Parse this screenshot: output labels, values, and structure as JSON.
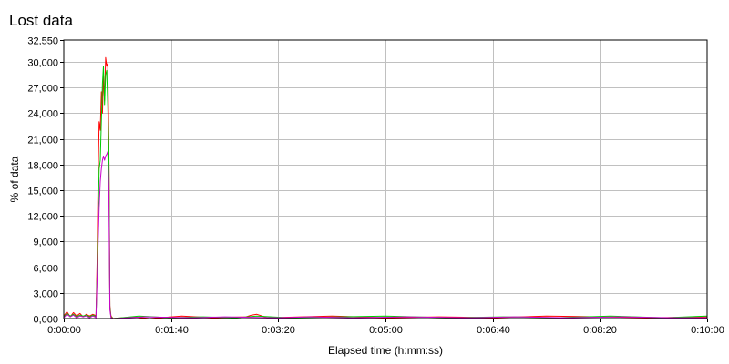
{
  "chart_data": {
    "type": "line",
    "title": "Lost data",
    "xlabel": "Elapsed time (h:mm:ss)",
    "ylabel": "% of data",
    "xlim": [
      0,
      600
    ],
    "ylim": [
      0,
      32550
    ],
    "x_ticks": [
      {
        "value": 0,
        "label": "0:00:00"
      },
      {
        "value": 100,
        "label": "0:01:40"
      },
      {
        "value": 200,
        "label": "0:03:20"
      },
      {
        "value": 300,
        "label": "0:05:00"
      },
      {
        "value": 400,
        "label": "0:06:40"
      },
      {
        "value": 500,
        "label": "0:08:20"
      },
      {
        "value": 600,
        "label": "0:10:00"
      }
    ],
    "y_ticks": [
      {
        "value": 0,
        "label": "0,000"
      },
      {
        "value": 3000,
        "label": "3,000"
      },
      {
        "value": 6000,
        "label": "6,000"
      },
      {
        "value": 9000,
        "label": "9,000"
      },
      {
        "value": 12000,
        "label": "12,000"
      },
      {
        "value": 15000,
        "label": "15,000"
      },
      {
        "value": 18000,
        "label": "18,000"
      },
      {
        "value": 21000,
        "label": "21,000"
      },
      {
        "value": 24000,
        "label": "24,000"
      },
      {
        "value": 27000,
        "label": "27,000"
      },
      {
        "value": 30000,
        "label": "30,000"
      },
      {
        "value": 32550,
        "label": "32,550"
      }
    ],
    "grid": true,
    "series": [
      {
        "color": "#ff0000",
        "points": [
          [
            0,
            300
          ],
          [
            3,
            800
          ],
          [
            6,
            200
          ],
          [
            9,
            700
          ],
          [
            12,
            300
          ],
          [
            15,
            600
          ],
          [
            18,
            200
          ],
          [
            21,
            500
          ],
          [
            24,
            300
          ],
          [
            27,
            500
          ],
          [
            29,
            400
          ],
          [
            30,
            200
          ],
          [
            31,
            6500
          ],
          [
            32,
            17000
          ],
          [
            33,
            23000
          ],
          [
            34,
            22000
          ],
          [
            35,
            26500
          ],
          [
            36,
            24000
          ],
          [
            37,
            28500
          ],
          [
            38,
            25500
          ],
          [
            39,
            30500
          ],
          [
            40,
            29500
          ],
          [
            41,
            29800
          ],
          [
            42,
            21000
          ],
          [
            43,
            1500
          ],
          [
            44,
            300
          ],
          [
            46,
            0
          ],
          [
            65,
            200
          ],
          [
            80,
            0
          ],
          [
            110,
            300
          ],
          [
            140,
            100
          ],
          [
            170,
            200
          ],
          [
            175,
            400
          ],
          [
            180,
            500
          ],
          [
            190,
            100
          ],
          [
            250,
            300
          ],
          [
            300,
            100
          ],
          [
            350,
            200
          ],
          [
            400,
            100
          ],
          [
            450,
            300
          ],
          [
            500,
            200
          ],
          [
            550,
            100
          ],
          [
            600,
            200
          ]
        ]
      },
      {
        "color": "#00cc00",
        "points": [
          [
            0,
            200
          ],
          [
            3,
            600
          ],
          [
            6,
            300
          ],
          [
            9,
            500
          ],
          [
            12,
            200
          ],
          [
            15,
            400
          ],
          [
            18,
            300
          ],
          [
            21,
            400
          ],
          [
            24,
            200
          ],
          [
            27,
            400
          ],
          [
            29,
            300
          ],
          [
            30,
            200
          ],
          [
            31,
            5000
          ],
          [
            32,
            12000
          ],
          [
            33,
            17500
          ],
          [
            34,
            18500
          ],
          [
            35,
            23000
          ],
          [
            36,
            27500
          ],
          [
            37,
            29500
          ],
          [
            38,
            25000
          ],
          [
            39,
            28500
          ],
          [
            40,
            29000
          ],
          [
            41,
            25000
          ],
          [
            42,
            20000
          ],
          [
            43,
            1200
          ],
          [
            44,
            200
          ],
          [
            46,
            0
          ],
          [
            70,
            300
          ],
          [
            100,
            100
          ],
          [
            130,
            200
          ],
          [
            160,
            100
          ],
          [
            180,
            300
          ],
          [
            210,
            100
          ],
          [
            260,
            200
          ],
          [
            300,
            300
          ],
          [
            360,
            100
          ],
          [
            410,
            200
          ],
          [
            460,
            100
          ],
          [
            510,
            300
          ],
          [
            560,
            100
          ],
          [
            600,
            300
          ]
        ]
      },
      {
        "color": "#cc00cc",
        "points": [
          [
            0,
            100
          ],
          [
            3,
            500
          ],
          [
            6,
            200
          ],
          [
            9,
            400
          ],
          [
            12,
            100
          ],
          [
            15,
            300
          ],
          [
            18,
            200
          ],
          [
            21,
            300
          ],
          [
            24,
            100
          ],
          [
            27,
            300
          ],
          [
            29,
            200
          ],
          [
            30,
            100
          ],
          [
            31,
            4500
          ],
          [
            32,
            9000
          ],
          [
            33,
            13000
          ],
          [
            34,
            16000
          ],
          [
            35,
            17500
          ],
          [
            36,
            18500
          ],
          [
            37,
            19000
          ],
          [
            38,
            18500
          ],
          [
            39,
            19000
          ],
          [
            40,
            19200
          ],
          [
            41,
            19500
          ],
          [
            42,
            15500
          ],
          [
            43,
            1000
          ],
          [
            44,
            100
          ],
          [
            46,
            0
          ],
          [
            75,
            200
          ],
          [
            120,
            100
          ],
          [
            150,
            200
          ],
          [
            200,
            100
          ],
          [
            230,
            200
          ],
          [
            270,
            100
          ],
          [
            320,
            200
          ],
          [
            380,
            100
          ],
          [
            420,
            200
          ],
          [
            470,
            100
          ],
          [
            520,
            200
          ],
          [
            570,
            100
          ],
          [
            600,
            100
          ]
        ]
      }
    ]
  }
}
